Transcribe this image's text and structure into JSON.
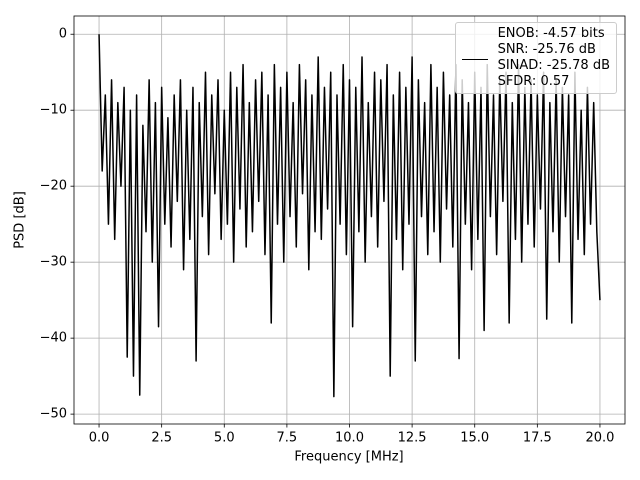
{
  "chart_data": {
    "type": "line",
    "xlabel": "Frequency [MHz]",
    "ylabel": "PSD [dB]",
    "x": [
      0,
      0.125,
      0.25,
      0.375,
      0.5,
      0.625,
      0.75,
      0.875,
      1,
      1.125,
      1.25,
      1.375,
      1.5,
      1.625,
      1.75,
      1.875,
      2,
      2.125,
      2.25,
      2.375,
      2.5,
      2.625,
      2.75,
      2.875,
      3,
      3.125,
      3.25,
      3.375,
      3.5,
      3.625,
      3.75,
      3.875,
      4,
      4.125,
      4.25,
      4.375,
      4.5,
      4.625,
      4.75,
      4.875,
      5,
      5.125,
      5.25,
      5.375,
      5.5,
      5.625,
      5.75,
      5.875,
      6,
      6.125,
      6.25,
      6.375,
      6.5,
      6.625,
      6.75,
      6.875,
      7,
      7.125,
      7.25,
      7.375,
      7.5,
      7.625,
      7.75,
      7.875,
      8,
      8.125,
      8.25,
      8.375,
      8.5,
      8.625,
      8.75,
      8.875,
      9,
      9.125,
      9.25,
      9.375,
      9.5,
      9.625,
      9.75,
      9.875,
      10,
      10.125,
      10.25,
      10.375,
      10.5,
      10.625,
      10.75,
      10.875,
      11,
      11.125,
      11.25,
      11.375,
      11.5,
      11.625,
      11.75,
      11.875,
      12,
      12.125,
      12.25,
      12.375,
      12.5,
      12.625,
      12.75,
      12.875,
      13,
      13.125,
      13.25,
      13.375,
      13.5,
      13.625,
      13.75,
      13.875,
      14,
      14.125,
      14.25,
      14.375,
      14.5,
      14.625,
      14.75,
      14.875,
      15,
      15.125,
      15.25,
      15.375,
      15.5,
      15.625,
      15.75,
      15.875,
      16,
      16.125,
      16.25,
      16.375,
      16.5,
      16.625,
      16.75,
      16.875,
      17,
      17.125,
      17.25,
      17.375,
      17.5,
      17.625,
      17.75,
      17.875,
      18,
      18.125,
      18.25,
      18.375,
      18.5,
      18.625,
      18.75,
      18.875,
      19,
      19.125,
      19.25,
      19.375,
      19.5,
      19.625,
      19.75,
      19.875,
      20
    ],
    "series": [
      {
        "name": "ENOB: -4.57 bits\nSNR: -25.76 dB\nSINAD: -25.78 dB\nSFDR: 0.57",
        "color": "#000000",
        "values": [
          0,
          -18,
          -8,
          -25,
          -6,
          -27,
          -9,
          -20,
          -7,
          -42.5,
          -10,
          -45,
          -8,
          -47.5,
          -12,
          -26,
          -6,
          -30,
          -9,
          -38.5,
          -7,
          -25,
          -11,
          -28,
          -8,
          -22,
          -6,
          -31,
          -10,
          -27,
          -7,
          -43,
          -9,
          -24,
          -5,
          -29,
          -8,
          -21,
          -6,
          -27,
          -10,
          -25,
          -5,
          -30,
          -7,
          -23,
          -4,
          -28,
          -9,
          -26,
          -6,
          -22,
          -5,
          -29,
          -8,
          -38,
          -4,
          -25,
          -7,
          -30,
          -5,
          -24,
          -9,
          -28,
          -4,
          -21,
          -6,
          -31,
          -8,
          -26,
          -3,
          -27,
          -7,
          -23,
          -5,
          -47.7,
          -8,
          -25,
          -4,
          -29,
          -6,
          -38.5,
          -7,
          -26,
          -3,
          -30,
          -9,
          -24,
          -5,
          -28,
          -6,
          -22,
          -4,
          -45,
          -8,
          -27,
          -5,
          -31,
          -7,
          -25,
          -3,
          -43,
          -6,
          -24,
          -9,
          -29,
          -4,
          -26,
          -7,
          -30,
          -5,
          -23,
          -8,
          -28,
          -4,
          -42.7,
          -6,
          -25,
          -9,
          -31,
          -5,
          -27,
          -7,
          -39,
          -4,
          -24,
          -8,
          -29,
          -6,
          -22,
          -5,
          -38,
          -9,
          -27,
          -4,
          -30,
          -7,
          -25,
          -6,
          -28,
          -8,
          -23,
          -5,
          -37.5,
          -9,
          -26,
          -6,
          -30,
          -7,
          -24,
          -8,
          -38,
          -5,
          -27,
          -10,
          -29,
          -7,
          -25,
          -9,
          -26,
          -35
        ]
      }
    ],
    "xlim": [
      -1,
      21
    ],
    "ylim": [
      -51.3,
      2.4
    ],
    "xticks": [
      {
        "value": 0,
        "label": "0.0"
      },
      2.5,
      {
        "value": 5,
        "label": "5.0"
      },
      7.5,
      {
        "value": 10,
        "label": "10.0"
      },
      12.5,
      {
        "value": 15,
        "label": "15.0"
      },
      17.5,
      {
        "value": 20,
        "label": "20.0"
      }
    ],
    "yticks": [
      {
        "value": -50,
        "label": "−50"
      },
      {
        "value": -40,
        "label": "−40"
      },
      {
        "value": -30,
        "label": "−30"
      },
      {
        "value": -20,
        "label": "−20"
      },
      {
        "value": -10,
        "label": "−10"
      },
      0
    ],
    "grid": true,
    "legend": "upper right"
  }
}
